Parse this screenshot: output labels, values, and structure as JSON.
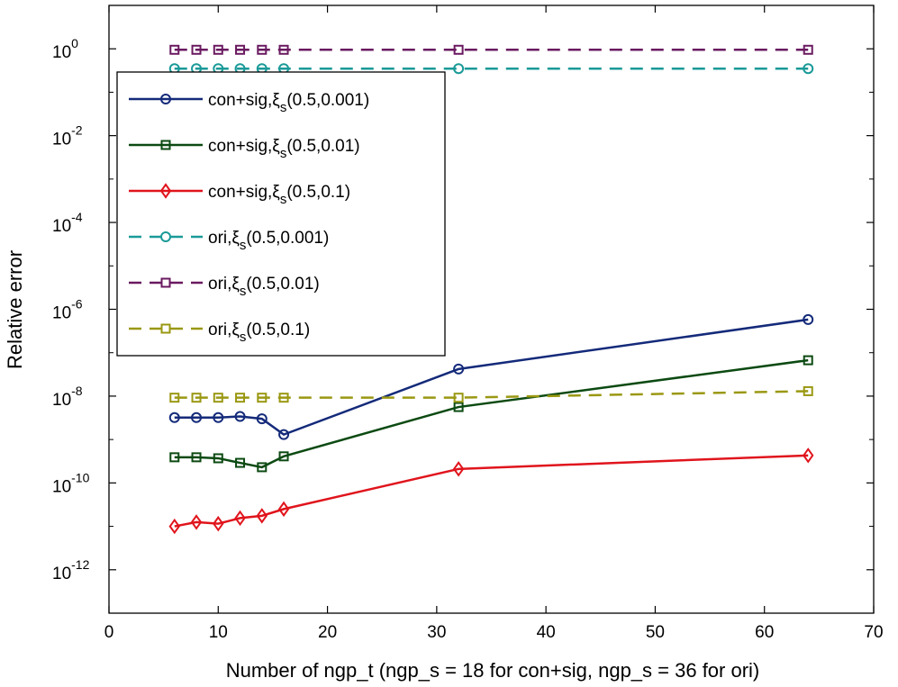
{
  "chart_data": {
    "type": "line",
    "title": "",
    "xlabel": "Number of ngp_t (ngp_s = 18 for con+sig, ngp_s = 36 for ori)",
    "ylabel": "Relative error",
    "xlim": [
      0,
      70
    ],
    "ylim": [
      1e-13,
      10.0
    ],
    "yscale": "log",
    "grid": false,
    "legend_position": "top-left",
    "xticks": [
      0,
      10,
      20,
      30,
      40,
      50,
      60,
      70
    ],
    "xtick_labels": [
      "0",
      "10",
      "20",
      "30",
      "40",
      "50",
      "60",
      "70"
    ],
    "yticks": [
      {
        "value": 1.0,
        "base": "10",
        "exp": "0"
      },
      {
        "value": 0.01,
        "base": "10",
        "exp": "-2"
      },
      {
        "value": 0.0001,
        "base": "10",
        "exp": "-4"
      },
      {
        "value": 1e-06,
        "base": "10",
        "exp": "-6"
      },
      {
        "value": 1e-08,
        "base": "10",
        "exp": "-8"
      },
      {
        "value": 1e-10,
        "base": "10",
        "exp": "-10"
      },
      {
        "value": 1e-12,
        "base": "10",
        "exp": "-12"
      }
    ],
    "series": [
      {
        "name": "con+sig,ξs(0.5,0.001)",
        "label_main": "con+sig,ξ",
        "label_sub": "s",
        "label_rest": "(0.5,0.001)",
        "color": "#142a7a",
        "dash": "solid",
        "marker": "circle",
        "x": [
          6,
          8,
          10,
          12,
          14,
          16,
          32,
          64
        ],
        "y": [
          3.2e-09,
          3.2e-09,
          3.2e-09,
          3.4e-09,
          3e-09,
          1.3e-09,
          4.2e-08,
          5.8e-07
        ]
      },
      {
        "name": "con+sig,ξs(0.5,0.01)",
        "label_main": "con+sig,ξ",
        "label_sub": "s",
        "label_rest": "(0.5,0.01)",
        "color": "#0c4a12",
        "dash": "solid",
        "marker": "square",
        "x": [
          6,
          8,
          10,
          12,
          14,
          16,
          32,
          64
        ],
        "y": [
          3.9e-10,
          3.9e-10,
          3.7e-10,
          2.9e-10,
          2.3e-10,
          4.1e-10,
          5.6e-09,
          6.7e-08
        ]
      },
      {
        "name": "con+sig,ξs(0.5,0.1)",
        "label_main": "con+sig,ξ",
        "label_sub": "s",
        "label_rest": "(0.5,0.1)",
        "color": "#e0141c",
        "dash": "solid",
        "marker": "diamond",
        "x": [
          6,
          8,
          10,
          12,
          14,
          16,
          32,
          64
        ],
        "y": [
          1e-11,
          1.25e-11,
          1.15e-11,
          1.55e-11,
          1.75e-11,
          2.5e-11,
          2.1e-10,
          4.3e-10
        ]
      },
      {
        "name": "ori,ξs(0.5,0.001)",
        "label_main": "ori,ξ",
        "label_sub": "s",
        "label_rest": "(0.5,0.001)",
        "color": "#1a9a98",
        "dash": "dashed",
        "marker": "circle",
        "x": [
          6,
          8,
          10,
          12,
          14,
          16,
          32,
          64
        ],
        "y": [
          0.35,
          0.35,
          0.35,
          0.35,
          0.35,
          0.35,
          0.35,
          0.35
        ]
      },
      {
        "name": "ori,ξs(0.5,0.01)",
        "label_main": "ori,ξ",
        "label_sub": "s",
        "label_rest": "(0.5,0.01)",
        "color": "#6a1a60",
        "dash": "dashed",
        "marker": "square",
        "x": [
          6,
          8,
          10,
          12,
          14,
          16,
          32,
          64
        ],
        "y": [
          0.95,
          0.95,
          0.95,
          0.95,
          0.95,
          0.95,
          0.95,
          0.95
        ]
      },
      {
        "name": "ori,ξs(0.5,0.1)",
        "label_main": "ori,ξ",
        "label_sub": "s",
        "label_rest": "(0.5,0.1)",
        "color": "#9a9812",
        "dash": "dashed",
        "marker": "square",
        "x": [
          6,
          8,
          10,
          12,
          14,
          16,
          32,
          64
        ],
        "y": [
          9.2e-09,
          9.2e-09,
          9.2e-09,
          9.2e-09,
          9.2e-09,
          9.2e-09,
          9.2e-09,
          1.3e-08
        ]
      }
    ]
  }
}
